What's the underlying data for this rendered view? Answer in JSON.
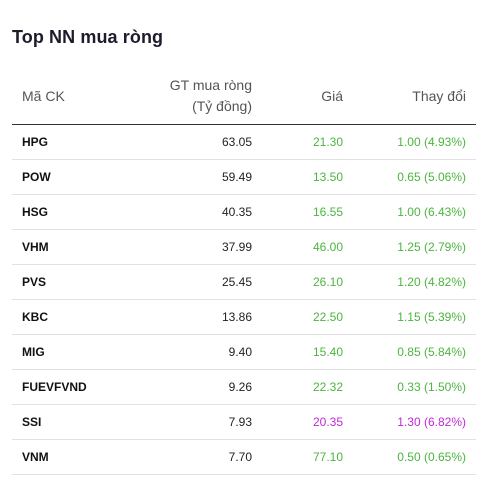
{
  "widget": {
    "title": "Top NN mua ròng",
    "columns": {
      "symbol": "Mã CK",
      "value_line1": "GT mua ròng",
      "value_line2": "(Tỷ đồng)",
      "price": "Giá",
      "change": "Thay đổi"
    },
    "colors": {
      "up": "#4cb53f",
      "ceiling": "#c02ad6"
    },
    "rows": [
      {
        "symbol": "HPG",
        "value": "63.05",
        "price": "21.30",
        "change": "1.00 (4.93%)",
        "status": "up"
      },
      {
        "symbol": "POW",
        "value": "59.49",
        "price": "13.50",
        "change": "0.65 (5.06%)",
        "status": "up"
      },
      {
        "symbol": "HSG",
        "value": "40.35",
        "price": "16.55",
        "change": "1.00 (6.43%)",
        "status": "up"
      },
      {
        "symbol": "VHM",
        "value": "37.99",
        "price": "46.00",
        "change": "1.25 (2.79%)",
        "status": "up"
      },
      {
        "symbol": "PVS",
        "value": "25.45",
        "price": "26.10",
        "change": "1.20 (4.82%)",
        "status": "up"
      },
      {
        "symbol": "KBC",
        "value": "13.86",
        "price": "22.50",
        "change": "1.15 (5.39%)",
        "status": "up"
      },
      {
        "symbol": "MIG",
        "value": "9.40",
        "price": "15.40",
        "change": "0.85 (5.84%)",
        "status": "up"
      },
      {
        "symbol": "FUEVFVND",
        "value": "9.26",
        "price": "22.32",
        "change": "0.33 (1.50%)",
        "status": "up"
      },
      {
        "symbol": "SSI",
        "value": "7.93",
        "price": "20.35",
        "change": "1.30 (6.82%)",
        "status": "ceiling"
      },
      {
        "symbol": "VNM",
        "value": "7.70",
        "price": "77.10",
        "change": "0.50 (0.65%)",
        "status": "up"
      }
    ]
  }
}
